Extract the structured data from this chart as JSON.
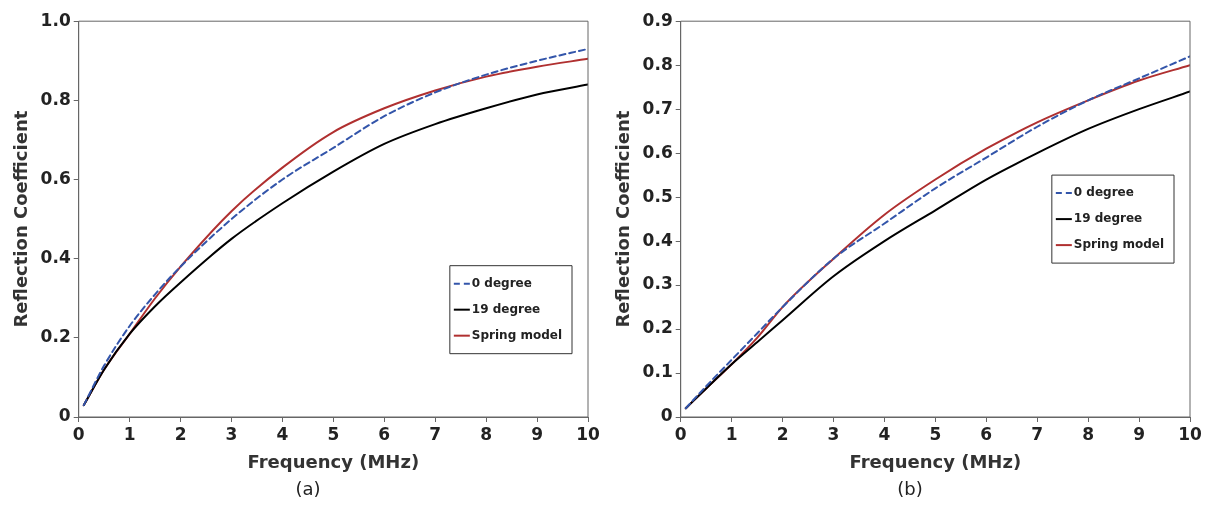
{
  "chart_data": [
    {
      "type": "line",
      "xlabel": "Frequency (MHz)",
      "ylabel": "Reflection Coefficient",
      "annotations": [
        "(a)"
      ],
      "x": [
        0.1,
        0.5,
        1,
        1.5,
        2,
        3,
        4,
        5,
        6,
        7,
        8,
        9,
        10
      ],
      "series": [
        {
          "name": "0 degree",
          "color": "#3355aa",
          "line_style": "dashed",
          "values": [
            0.03,
            0.13,
            0.23,
            0.31,
            0.38,
            0.5,
            0.6,
            0.68,
            0.76,
            0.82,
            0.865,
            0.9,
            0.93
          ]
        },
        {
          "name": "19 degree",
          "color": "#000000",
          "line_style": "solid",
          "values": [
            0.03,
            0.12,
            0.21,
            0.28,
            0.34,
            0.45,
            0.54,
            0.62,
            0.69,
            0.74,
            0.78,
            0.815,
            0.84
          ]
        },
        {
          "name": "Spring model",
          "color": "#b03030",
          "line_style": "solid",
          "values": [
            0.03,
            0.12,
            0.21,
            0.3,
            0.38,
            0.52,
            0.63,
            0.72,
            0.78,
            0.825,
            0.86,
            0.885,
            0.905
          ]
        }
      ],
      "xlim": [
        0,
        10
      ],
      "xticks": [
        0,
        1,
        2,
        3,
        4,
        5,
        6,
        7,
        8,
        9,
        10
      ],
      "ylim": [
        0,
        1
      ],
      "yticks": [
        0,
        0.2,
        0.4,
        0.6,
        0.8,
        {
          "value": 1,
          "label": "1.0"
        }
      ],
      "grid": false,
      "legend": "bottom right",
      "marker": "none"
    },
    {
      "type": "line",
      "xlabel": "Frequency (MHz)",
      "ylabel": "Reflection Coefficient",
      "annotations": [
        "(b)"
      ],
      "x": [
        0.1,
        0.5,
        1,
        1.5,
        2,
        3,
        4,
        5,
        6,
        7,
        8,
        9,
        10
      ],
      "series": [
        {
          "name": "0 degree",
          "color": "#3355aa",
          "line_style": "dashed",
          "values": [
            0.02,
            0.07,
            0.13,
            0.19,
            0.25,
            0.36,
            0.44,
            0.52,
            0.59,
            0.66,
            0.72,
            0.77,
            0.82
          ]
        },
        {
          "name": "19 degree",
          "color": "#000000",
          "line_style": "solid",
          "values": [
            0.02,
            0.065,
            0.12,
            0.17,
            0.22,
            0.32,
            0.4,
            0.47,
            0.54,
            0.6,
            0.655,
            0.7,
            0.74
          ]
        },
        {
          "name": "Spring model",
          "color": "#b03030",
          "line_style": "solid",
          "values": [
            0.02,
            0.065,
            0.12,
            0.18,
            0.25,
            0.36,
            0.46,
            0.54,
            0.61,
            0.67,
            0.72,
            0.765,
            0.8
          ]
        }
      ],
      "xlim": [
        0,
        10
      ],
      "xticks": [
        0,
        1,
        2,
        3,
        4,
        5,
        6,
        7,
        8,
        9,
        10
      ],
      "ylim": [
        0,
        0.9
      ],
      "yticks": [
        0,
        0.1,
        0.2,
        0.3,
        0.4,
        0.5,
        0.6,
        0.7,
        0.8,
        0.9
      ],
      "grid": false,
      "legend": "right",
      "marker": "none"
    }
  ]
}
